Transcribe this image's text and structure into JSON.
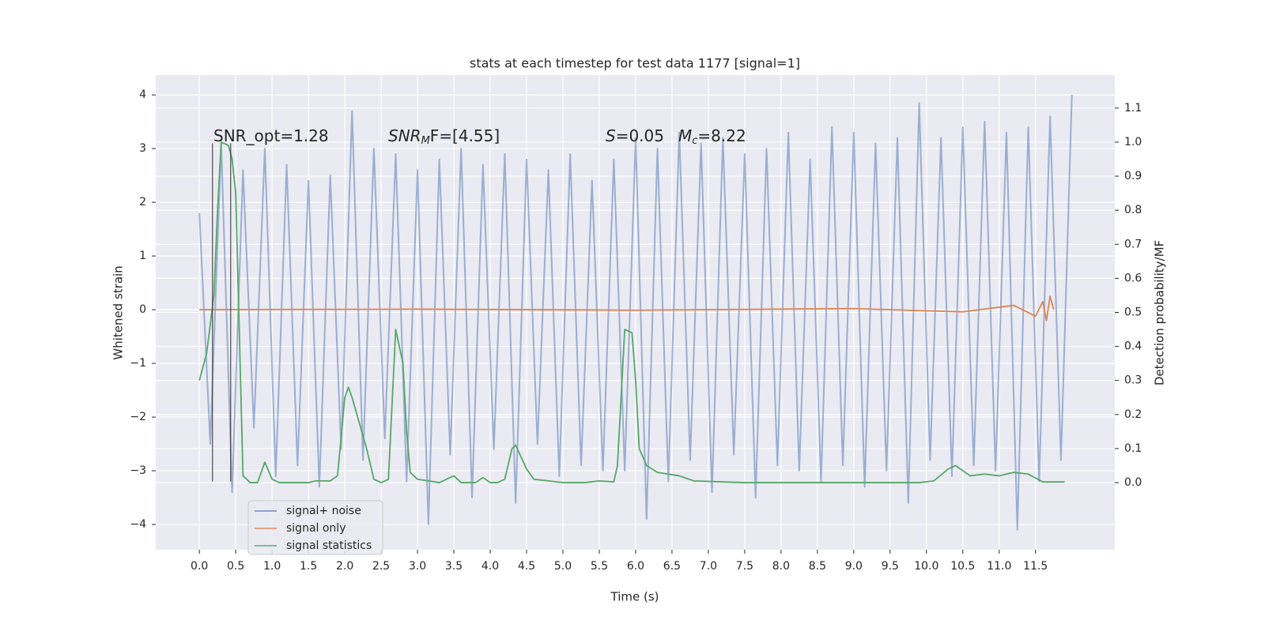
{
  "chart_data": {
    "type": "line",
    "title": "stats at each timestep for test data 1177 [signal=1]",
    "xlabel": "Time (s)",
    "ylabel": "Whitened strain",
    "y2label": "Detection probability/MF",
    "xlim": [
      -0.6,
      12.59
    ],
    "ylim": [
      -4.47,
      4.37
    ],
    "y2lim": [
      -0.197,
      1.197
    ],
    "xticks": [
      {
        "value": 0,
        "label": "0.0"
      },
      0.5,
      {
        "value": 1,
        "label": "1.0"
      },
      1.5,
      {
        "value": 2,
        "label": "2.0"
      },
      2.5,
      {
        "value": 3,
        "label": "3.0"
      },
      3.5,
      {
        "value": 4,
        "label": "4.0"
      },
      4.5,
      {
        "value": 5,
        "label": "5.0"
      },
      5.5,
      {
        "value": 6,
        "label": "6.0"
      },
      6.5,
      {
        "value": 7,
        "label": "7.0"
      },
      7.5,
      {
        "value": 8,
        "label": "8.0"
      },
      8.5,
      {
        "value": 9,
        "label": "9.0"
      },
      9.5,
      {
        "value": 10,
        "label": "10.0"
      },
      10.5,
      {
        "value": 11,
        "label": "11.0"
      },
      11.5
    ],
    "yticks": [
      {
        "value": -4,
        "label": "−4"
      },
      {
        "value": -3,
        "label": "−3"
      },
      {
        "value": -2,
        "label": "−2"
      },
      {
        "value": -1,
        "label": "−1"
      },
      0,
      1,
      2,
      3,
      4
    ],
    "y2ticks": [
      {
        "value": 0,
        "label": "0.0"
      },
      0.1,
      0.2,
      0.3,
      0.4,
      0.5,
      0.6,
      0.7,
      0.8,
      0.9,
      {
        "value": 1,
        "label": "1.0"
      },
      1.1
    ],
    "grid": true,
    "legend": "lower left",
    "series": [
      {
        "name": "signal+ noise",
        "color": "#4c72b0",
        "x": [
          0,
          0.15,
          0.3,
          0.45,
          0.6,
          0.75,
          0.9,
          1.05,
          1.2,
          1.35,
          1.5,
          1.65,
          1.8,
          1.95,
          2.1,
          2.25,
          2.4,
          2.55,
          2.7,
          2.85,
          3,
          3.15,
          3.3,
          3.45,
          3.6,
          3.75,
          3.9,
          4.05,
          4.2,
          4.35,
          4.5,
          4.65,
          4.8,
          4.95,
          5.1,
          5.25,
          5.4,
          5.55,
          5.7,
          5.85,
          6,
          6.15,
          6.3,
          6.45,
          6.6,
          6.75,
          6.9,
          7.05,
          7.2,
          7.35,
          7.5,
          7.65,
          7.8,
          7.95,
          8.1,
          8.25,
          8.4,
          8.55,
          8.7,
          8.85,
          9,
          9.15,
          9.3,
          9.45,
          9.6,
          9.75,
          9.9,
          10.05,
          10.2,
          10.35,
          10.5,
          10.65,
          10.8,
          10.95,
          11.1,
          11.25,
          11.4,
          11.55,
          11.7,
          11.85,
          12
        ],
        "values": [
          1.8,
          -2.5,
          3.1,
          -3.4,
          2.6,
          -2.2,
          3.0,
          -3.1,
          2.7,
          -2.9,
          2.4,
          -3.3,
          2.5,
          -2.6,
          3.7,
          -2.8,
          3.0,
          -2.4,
          2.9,
          -3.2,
          2.6,
          -4.0,
          2.8,
          -2.7,
          3.0,
          -3.5,
          2.7,
          -2.6,
          2.9,
          -3.6,
          2.8,
          -2.5,
          2.6,
          -3.1,
          2.9,
          -2.9,
          2.4,
          -3.0,
          2.8,
          -3.0,
          3.2,
          -3.9,
          3.0,
          -3.2,
          3.3,
          -2.8,
          3.1,
          -3.4,
          3.2,
          -2.7,
          2.9,
          -3.5,
          3.0,
          -2.9,
          3.3,
          -3.0,
          2.8,
          -3.2,
          3.4,
          -2.9,
          3.3,
          -3.3,
          3.1,
          -3.0,
          3.2,
          -3.6,
          3.85,
          -2.8,
          3.2,
          -3.1,
          3.4,
          -2.9,
          3.5,
          -3.0,
          3.3,
          -4.1,
          3.4,
          -3.2,
          3.6,
          -2.8,
          4.0
        ]
      },
      {
        "name": "signal only",
        "color": "#dd8452",
        "x": [
          0,
          3,
          6,
          9,
          10.5,
          11.2,
          11.5,
          11.6,
          11.65,
          11.7,
          11.75
        ],
        "values": [
          0,
          0.01,
          -0.01,
          0.02,
          -0.04,
          0.08,
          -0.12,
          0.15,
          -0.2,
          0.25,
          0
        ]
      },
      {
        "name": "signal statistics",
        "color": "#55a868",
        "axis": "y2",
        "x": [
          0,
          0.1,
          0.2,
          0.25,
          0.3,
          0.4,
          0.45,
          0.5,
          0.6,
          0.7,
          0.8,
          0.9,
          1.0,
          1.1,
          1.5,
          1.6,
          1.8,
          1.9,
          2.0,
          2.05,
          2.1,
          2.3,
          2.4,
          2.5,
          2.6,
          2.7,
          2.8,
          2.85,
          2.9,
          3.0,
          3.3,
          3.5,
          3.6,
          3.8,
          3.9,
          4.0,
          4.1,
          4.2,
          4.3,
          4.35,
          4.5,
          4.6,
          5.0,
          5.3,
          5.5,
          5.7,
          5.75,
          5.85,
          5.95,
          6.0,
          6.05,
          6.15,
          6.3,
          6.6,
          6.8,
          7.5,
          9.9,
          10.1,
          10.3,
          10.4,
          10.6,
          10.8,
          11.0,
          11.2,
          11.4,
          11.6,
          11.9
        ],
        "values": [
          0.3,
          0.38,
          0.55,
          0.8,
          1.0,
          0.99,
          0.95,
          0.85,
          0.02,
          0.0,
          0.0,
          0.06,
          0.01,
          0,
          0,
          0.005,
          0.005,
          0.02,
          0.25,
          0.28,
          0.25,
          0.1,
          0.01,
          0,
          0.01,
          0.45,
          0.35,
          0.15,
          0.03,
          0.01,
          0.0,
          0.02,
          0.0,
          0.0,
          0.015,
          0.0,
          0.0,
          0.01,
          0.1,
          0.11,
          0.04,
          0.01,
          0,
          0.0,
          0.005,
          0.002,
          0.05,
          0.45,
          0.44,
          0.3,
          0.1,
          0.05,
          0.03,
          0.02,
          0.005,
          0,
          0,
          0.005,
          0.04,
          0.05,
          0.02,
          0.025,
          0.02,
          0.03,
          0.025,
          0.002,
          0.002
        ]
      }
    ],
    "vlines": [
      0.18,
      0.43
    ],
    "vline_span": [
      -3.2,
      3.1
    ],
    "annotations": [
      {
        "parts": [
          "SNR_opt=1.28"
        ]
      },
      {
        "parts": [
          "SNR",
          "M",
          "F=[4.55]"
        ]
      },
      {
        "parts": [
          "S",
          "=0.05"
        ]
      },
      {
        "parts": [
          "M",
          "c",
          "=8.22"
        ]
      }
    ]
  }
}
